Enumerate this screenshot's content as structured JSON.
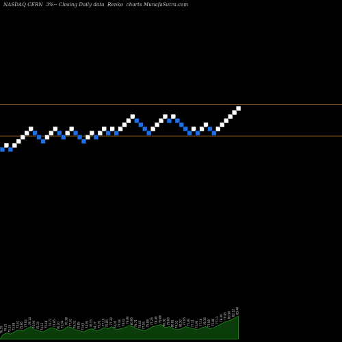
{
  "header": {
    "title": "NASDAQ CERN  3%-- Closing Daily data  Renko  charts MunafaSutra.com"
  },
  "colors": {
    "background": "#000000",
    "up_brick": "#ffffff",
    "down_brick": "#1e6ee6",
    "level_line": "#b8762c",
    "volume_area": "#0b3d0b",
    "volume_stroke": "#2ea82e"
  },
  "chart_data": {
    "type": "renko",
    "title": "NASDAQ CERN  3%-- Closing Daily data  Renko  charts MunafaSutra.com",
    "brick_size_label": "3%",
    "bricks": [
      {
        "dir": "down",
        "level": 0
      },
      {
        "dir": "up",
        "level": 1
      },
      {
        "dir": "down",
        "level": 0
      },
      {
        "dir": "up",
        "level": 1
      },
      {
        "dir": "up",
        "level": 2
      },
      {
        "dir": "up",
        "level": 3
      },
      {
        "dir": "up",
        "level": 4
      },
      {
        "dir": "up",
        "level": 5
      },
      {
        "dir": "down",
        "level": 4
      },
      {
        "dir": "down",
        "level": 3
      },
      {
        "dir": "down",
        "level": 2
      },
      {
        "dir": "up",
        "level": 3
      },
      {
        "dir": "up",
        "level": 4
      },
      {
        "dir": "up",
        "level": 5
      },
      {
        "dir": "down",
        "level": 4
      },
      {
        "dir": "down",
        "level": 3
      },
      {
        "dir": "up",
        "level": 4
      },
      {
        "dir": "up",
        "level": 5
      },
      {
        "dir": "down",
        "level": 4
      },
      {
        "dir": "down",
        "level": 3
      },
      {
        "dir": "down",
        "level": 2
      },
      {
        "dir": "up",
        "level": 3
      },
      {
        "dir": "up",
        "level": 4
      },
      {
        "dir": "down",
        "level": 3
      },
      {
        "dir": "up",
        "level": 4
      },
      {
        "dir": "up",
        "level": 5
      },
      {
        "dir": "down",
        "level": 4
      },
      {
        "dir": "up",
        "level": 5
      },
      {
        "dir": "down",
        "level": 4
      },
      {
        "dir": "up",
        "level": 5
      },
      {
        "dir": "up",
        "level": 6
      },
      {
        "dir": "up",
        "level": 7
      },
      {
        "dir": "up",
        "level": 8
      },
      {
        "dir": "down",
        "level": 7
      },
      {
        "dir": "down",
        "level": 6
      },
      {
        "dir": "down",
        "level": 5
      },
      {
        "dir": "down",
        "level": 4
      },
      {
        "dir": "up",
        "level": 5
      },
      {
        "dir": "up",
        "level": 6
      },
      {
        "dir": "up",
        "level": 7
      },
      {
        "dir": "up",
        "level": 8
      },
      {
        "dir": "down",
        "level": 7
      },
      {
        "dir": "up",
        "level": 8
      },
      {
        "dir": "down",
        "level": 7
      },
      {
        "dir": "down",
        "level": 6
      },
      {
        "dir": "down",
        "level": 5
      },
      {
        "dir": "down",
        "level": 4
      },
      {
        "dir": "up",
        "level": 5
      },
      {
        "dir": "down",
        "level": 4
      },
      {
        "dir": "up",
        "level": 5
      },
      {
        "dir": "up",
        "level": 6
      },
      {
        "dir": "down",
        "level": 5
      },
      {
        "dir": "down",
        "level": 4
      },
      {
        "dir": "up",
        "level": 5
      },
      {
        "dir": "up",
        "level": 6
      },
      {
        "dir": "up",
        "level": 7
      },
      {
        "dir": "up",
        "level": 8
      },
      {
        "dir": "up",
        "level": 9
      },
      {
        "dir": "up",
        "level": 10
      }
    ],
    "level_lines": [
      10,
      4
    ],
    "volume": [
      4,
      6,
      5,
      7,
      9,
      8,
      10,
      12,
      9,
      8,
      7,
      9,
      11,
      10,
      8,
      9,
      12,
      11,
      9,
      8,
      7,
      9,
      10,
      8,
      9,
      11,
      10,
      12,
      9,
      10,
      11,
      13,
      12,
      10,
      9,
      8,
      10,
      12,
      13,
      14,
      11,
      12,
      10,
      9,
      10,
      12,
      11,
      10,
      9,
      11,
      12,
      10,
      11,
      13,
      15,
      17,
      18,
      20,
      22
    ],
    "volume_labels": [
      "76.35",
      "74.21",
      "75.10",
      "72.88",
      "73.41",
      "75.66",
      "77.02",
      "78.14",
      "76.90",
      "75.33",
      "74.12",
      "75.48",
      "76.71",
      "77.95",
      "76.20",
      "75.04",
      "76.38",
      "77.61",
      "76.02",
      "74.85",
      "73.60",
      "74.93",
      "76.15",
      "74.77",
      "75.92",
      "77.10",
      "75.85",
      "77.30",
      "76.05",
      "77.44",
      "78.62",
      "79.80",
      "80.95",
      "79.71",
      "78.40",
      "77.16",
      "75.98",
      "77.25",
      "78.49",
      "79.66",
      "80.92",
      "79.60",
      "80.81",
      "79.52",
      "78.30",
      "77.05",
      "75.83",
      "77.11",
      "75.90",
      "77.16",
      "78.35",
      "77.08",
      "75.86",
      "77.13",
      "78.40",
      "79.65",
      "80.90",
      "82.12",
      "83.40"
    ]
  }
}
